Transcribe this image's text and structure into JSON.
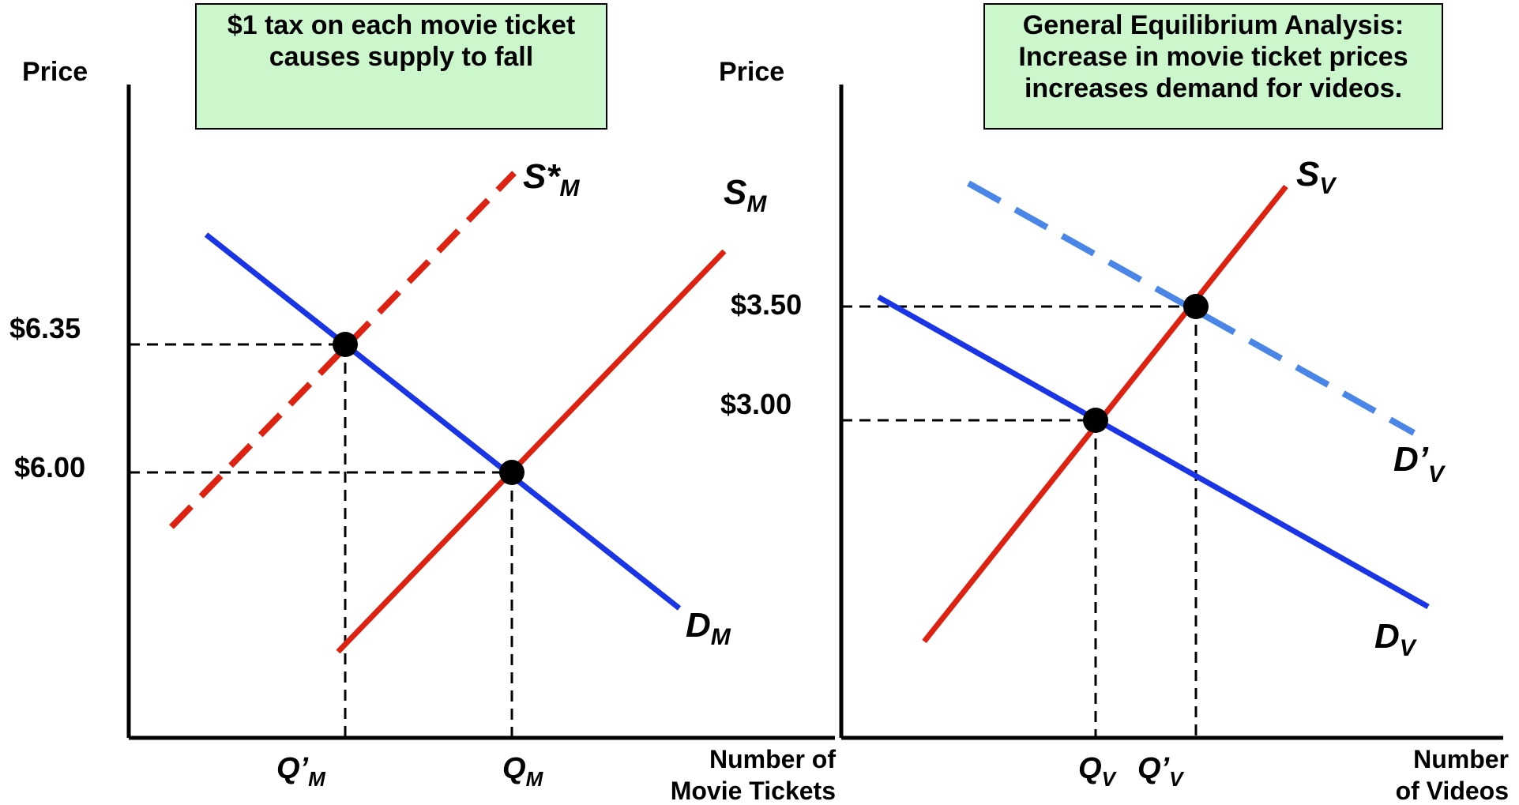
{
  "left_panel": {
    "note_lines": [
      "$1 tax on each movie ticket",
      "causes supply to fall"
    ],
    "y_axis_label": "Price",
    "x_axis_label_lines": [
      "Number of",
      "Movie Tickets"
    ],
    "price_labels": [
      "$6.35",
      "$6.00"
    ],
    "supply_new": {
      "main": "S*",
      "sub": "M"
    },
    "supply": {
      "main": "S",
      "sub": "M"
    },
    "demand": {
      "main": "D",
      "sub": "M"
    },
    "qty_new": {
      "main": "Q’",
      "sub": "M"
    },
    "qty": {
      "main": "Q",
      "sub": "M"
    }
  },
  "right_panel": {
    "note_lines": [
      "General Equilibrium Analysis:",
      "Increase in movie ticket prices",
      "increases demand for videos."
    ],
    "y_axis_label": "Price",
    "x_axis_label_lines": [
      "Number",
      "of Videos"
    ],
    "price_labels": [
      "$3.50",
      "$3.00"
    ],
    "supply": {
      "main": "S",
      "sub": "V"
    },
    "demand_new": {
      "main": "D’",
      "sub": "V"
    },
    "demand": {
      "main": "D",
      "sub": "V"
    },
    "qty": {
      "main": "Q",
      "sub": "V"
    },
    "qty_new": {
      "main": "Q’",
      "sub": "V"
    }
  },
  "colors": {
    "supply": "#dd2211",
    "demand": "#1a35e6",
    "shifted_demand": "#4a86e8",
    "note_fill": "#ccf7cc"
  }
}
